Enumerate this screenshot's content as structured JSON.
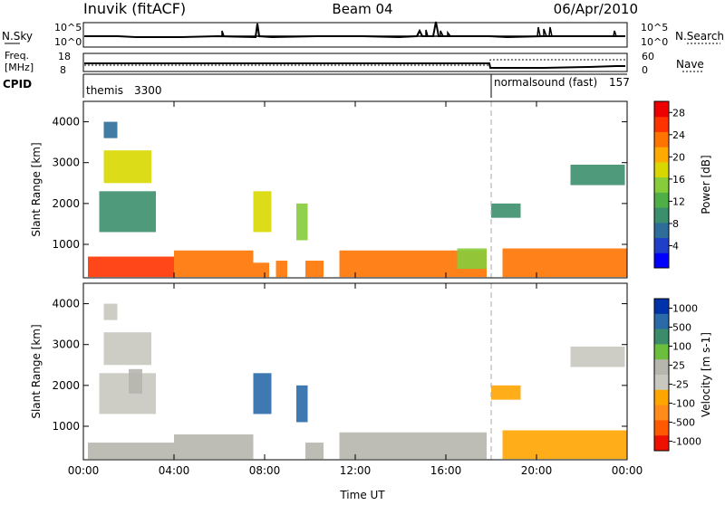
{
  "header": {
    "station": "Inuvik (fitACF)",
    "beam": "Beam 04",
    "date": "06/Apr/2010"
  },
  "nsky": {
    "label": "N.Sky",
    "ticks": [
      "10^5",
      "10^0"
    ],
    "right_label": "N.Search"
  },
  "freq": {
    "label_line1": "Freq.",
    "label_line2": "[MHz]",
    "left_ticks": [
      "18",
      "8"
    ],
    "right_ticks": [
      "60",
      "0"
    ],
    "right_label": "Nave"
  },
  "cpid": {
    "label": "CPID",
    "segments": [
      {
        "name": "themis",
        "id": "3300",
        "start_h": 0
      },
      {
        "name": "normalsound (fast)",
        "id": "157",
        "start_h": 18
      }
    ]
  },
  "colors": {
    "power_scale": [
      "#0000ff",
      "#1f3fc8",
      "#2e6d9a",
      "#3b8f6d",
      "#4fae45",
      "#86cc3b",
      "#d8d800",
      "#ffaa00",
      "#ff7300",
      "#ff3300",
      "#ee0000"
    ],
    "velocity_scale": [
      "#0033aa",
      "#2a6aa8",
      "#3a8c6a",
      "#6cbf3c",
      "#b6b6ae",
      "#c8c8c0",
      "#ffa500",
      "#ff8c1a",
      "#ff5a00",
      "#ee1100"
    ]
  },
  "chart_data": [
    {
      "type": "heatmap",
      "title": "Power",
      "ylabel": "Slant Range [km]",
      "xlabel": "",
      "x_ticks": [
        "00:00",
        "04:00",
        "08:00",
        "12:00",
        "16:00",
        "20:00",
        "00:00"
      ],
      "xlim_hours": [
        0,
        24
      ],
      "y_ticks": [
        1000,
        2000,
        3000,
        4000
      ],
      "ylim": [
        180,
        4500
      ],
      "colorbar": {
        "label": "Power [dB]",
        "ticks": [
          28,
          24,
          20,
          16,
          12,
          8,
          4
        ],
        "range": [
          0,
          30
        ]
      },
      "regions": [
        {
          "t": [
            0.9,
            1.5
          ],
          "r": [
            3600,
            4000
          ],
          "v": 6
        },
        {
          "t": [
            0.9,
            3.0
          ],
          "r": [
            2500,
            3300
          ],
          "v": 18
        },
        {
          "t": [
            0.7,
            3.2
          ],
          "r": [
            1300,
            2300
          ],
          "v": 10
        },
        {
          "t": [
            0.2,
            4.0
          ],
          "r": [
            200,
            700
          ],
          "v": 26
        },
        {
          "t": [
            4.0,
            7.5
          ],
          "r": [
            200,
            850
          ],
          "v": 24
        },
        {
          "t": [
            7.5,
            8.2
          ],
          "r": [
            200,
            550
          ],
          "v": 22
        },
        {
          "t": [
            7.5,
            8.3
          ],
          "r": [
            1300,
            2300
          ],
          "v": 18
        },
        {
          "t": [
            8.5,
            9.0
          ],
          "r": [
            200,
            600
          ],
          "v": 24
        },
        {
          "t": [
            9.4,
            9.9
          ],
          "r": [
            1100,
            2000
          ],
          "v": 14
        },
        {
          "t": [
            9.8,
            10.6
          ],
          "r": [
            200,
            600
          ],
          "v": 24
        },
        {
          "t": [
            11.3,
            17.8
          ],
          "r": [
            200,
            850
          ],
          "v": 24
        },
        {
          "t": [
            16.5,
            17.8
          ],
          "r": [
            400,
            900
          ],
          "v": 14
        },
        {
          "t": [
            18.0,
            19.3
          ],
          "r": [
            1650,
            2000
          ],
          "v": 10
        },
        {
          "t": [
            18.5,
            24.0
          ],
          "r": [
            200,
            900
          ],
          "v": 24
        },
        {
          "t": [
            21.5,
            23.9
          ],
          "r": [
            2450,
            2950
          ],
          "v": 10
        }
      ]
    },
    {
      "type": "heatmap",
      "title": "Velocity",
      "ylabel": "Slant Range [km]",
      "xlabel": "Time UT",
      "x_ticks": [
        "00:00",
        "04:00",
        "08:00",
        "12:00",
        "16:00",
        "20:00",
        "00:00"
      ],
      "xlim_hours": [
        0,
        24
      ],
      "y_ticks": [
        1000,
        2000,
        3000,
        4000
      ],
      "ylim": [
        180,
        4500
      ],
      "colorbar": {
        "label": "Velocity [m s-1]",
        "ticks": [
          1000,
          500,
          100,
          25,
          -25,
          -100,
          -500,
          -1000
        ],
        "range": [
          -1000,
          1000
        ]
      },
      "regions": [
        {
          "t": [
            0.9,
            1.5
          ],
          "r": [
            3600,
            4000
          ],
          "v": 0
        },
        {
          "t": [
            0.9,
            3.0
          ],
          "r": [
            2500,
            3300
          ],
          "v": 0
        },
        {
          "t": [
            0.7,
            3.2
          ],
          "r": [
            1300,
            2300
          ],
          "v": -150
        },
        {
          "t": [
            2.0,
            2.6
          ],
          "r": [
            1800,
            2400
          ],
          "v": 150
        },
        {
          "t": [
            0.2,
            4.0
          ],
          "r": [
            200,
            600
          ],
          "v": 100
        },
        {
          "t": [
            4.0,
            7.5
          ],
          "r": [
            200,
            800
          ],
          "v": 80
        },
        {
          "t": [
            7.5,
            8.3
          ],
          "r": [
            1300,
            2300
          ],
          "v": 600
        },
        {
          "t": [
            9.4,
            9.9
          ],
          "r": [
            1100,
            2000
          ],
          "v": 600
        },
        {
          "t": [
            9.8,
            10.6
          ],
          "r": [
            200,
            600
          ],
          "v": 100
        },
        {
          "t": [
            11.3,
            17.8
          ],
          "r": [
            200,
            850
          ],
          "v": 120
        },
        {
          "t": [
            18.0,
            19.3
          ],
          "r": [
            1650,
            2000
          ],
          "v": -200
        },
        {
          "t": [
            18.5,
            24.0
          ],
          "r": [
            200,
            900
          ],
          "v": -200
        },
        {
          "t": [
            21.5,
            23.9
          ],
          "r": [
            2450,
            2950
          ],
          "v": 0
        }
      ]
    }
  ]
}
